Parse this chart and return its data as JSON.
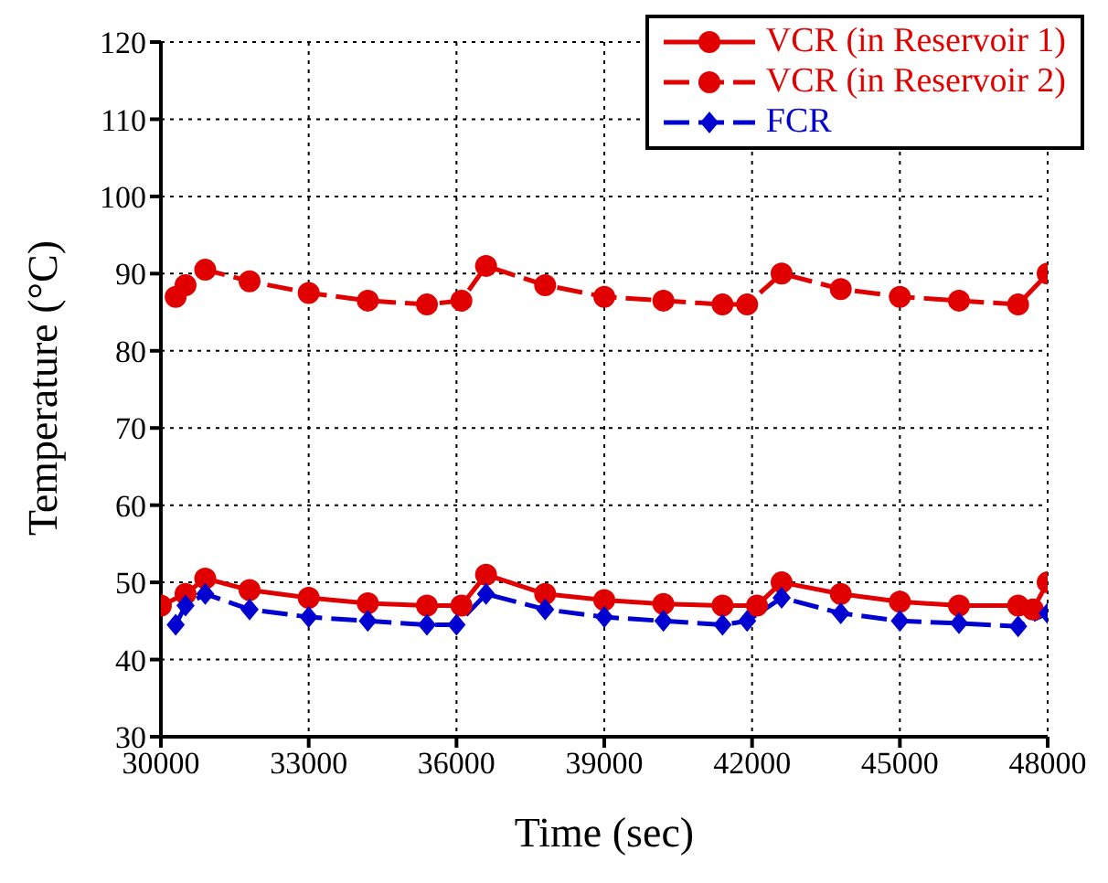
{
  "chart_data": {
    "type": "line",
    "xlabel": "Time (sec)",
    "ylabel": "Temperature (°C)",
    "xlim": [
      30000,
      48000
    ],
    "xticks": [
      30000,
      33000,
      36000,
      39000,
      42000,
      45000,
      48000
    ],
    "ylim": [
      30,
      120
    ],
    "yticks": [
      30,
      40,
      50,
      60,
      70,
      80,
      90,
      100,
      110,
      120
    ],
    "grid": true,
    "legend": "top right",
    "series": [
      {
        "name": "VCR (in Reservoir 1)",
        "color": "#e00000",
        "line_style": "solid",
        "marker": "circle",
        "x": [
          30000,
          30500,
          30900,
          31800,
          33000,
          34200,
          35400,
          36100,
          36600,
          37800,
          39000,
          40200,
          41400,
          42100,
          42600,
          43800,
          45000,
          46200,
          47400,
          47700,
          48000
        ],
        "values": [
          47,
          48.5,
          50.5,
          49,
          48,
          47.3,
          47,
          47,
          51,
          48.5,
          47.7,
          47.2,
          47,
          47,
          50,
          48.5,
          47.5,
          47,
          47,
          46.5,
          50
        ]
      },
      {
        "name": "VCR (in Reservoir 2)",
        "color": "#e00000",
        "line_style": "dashed",
        "marker": "circle",
        "x": [
          30300,
          30500,
          30900,
          31800,
          33000,
          34200,
          35400,
          36100,
          36600,
          37800,
          39000,
          40200,
          41400,
          41900,
          42600,
          43800,
          45000,
          46200,
          47400,
          48000
        ],
        "values": [
          87,
          88.5,
          90.5,
          89,
          87.5,
          86.5,
          86,
          86.5,
          91,
          88.5,
          87,
          86.5,
          86,
          86,
          90,
          88,
          87,
          86.5,
          86,
          90
        ]
      },
      {
        "name": "FCR",
        "color": "#0000d0",
        "line_style": "dashed",
        "marker": "diamond",
        "x": [
          30300,
          30500,
          30900,
          31800,
          33000,
          34200,
          35400,
          36000,
          36600,
          37800,
          39000,
          40200,
          41400,
          41900,
          42600,
          43800,
          45000,
          46200,
          47400,
          48000
        ],
        "values": [
          44.5,
          47,
          48.5,
          46.5,
          45.5,
          45,
          44.5,
          44.5,
          48.5,
          46.5,
          45.5,
          45,
          44.5,
          45,
          48,
          46,
          45,
          44.7,
          44.3,
          46
        ]
      }
    ]
  }
}
